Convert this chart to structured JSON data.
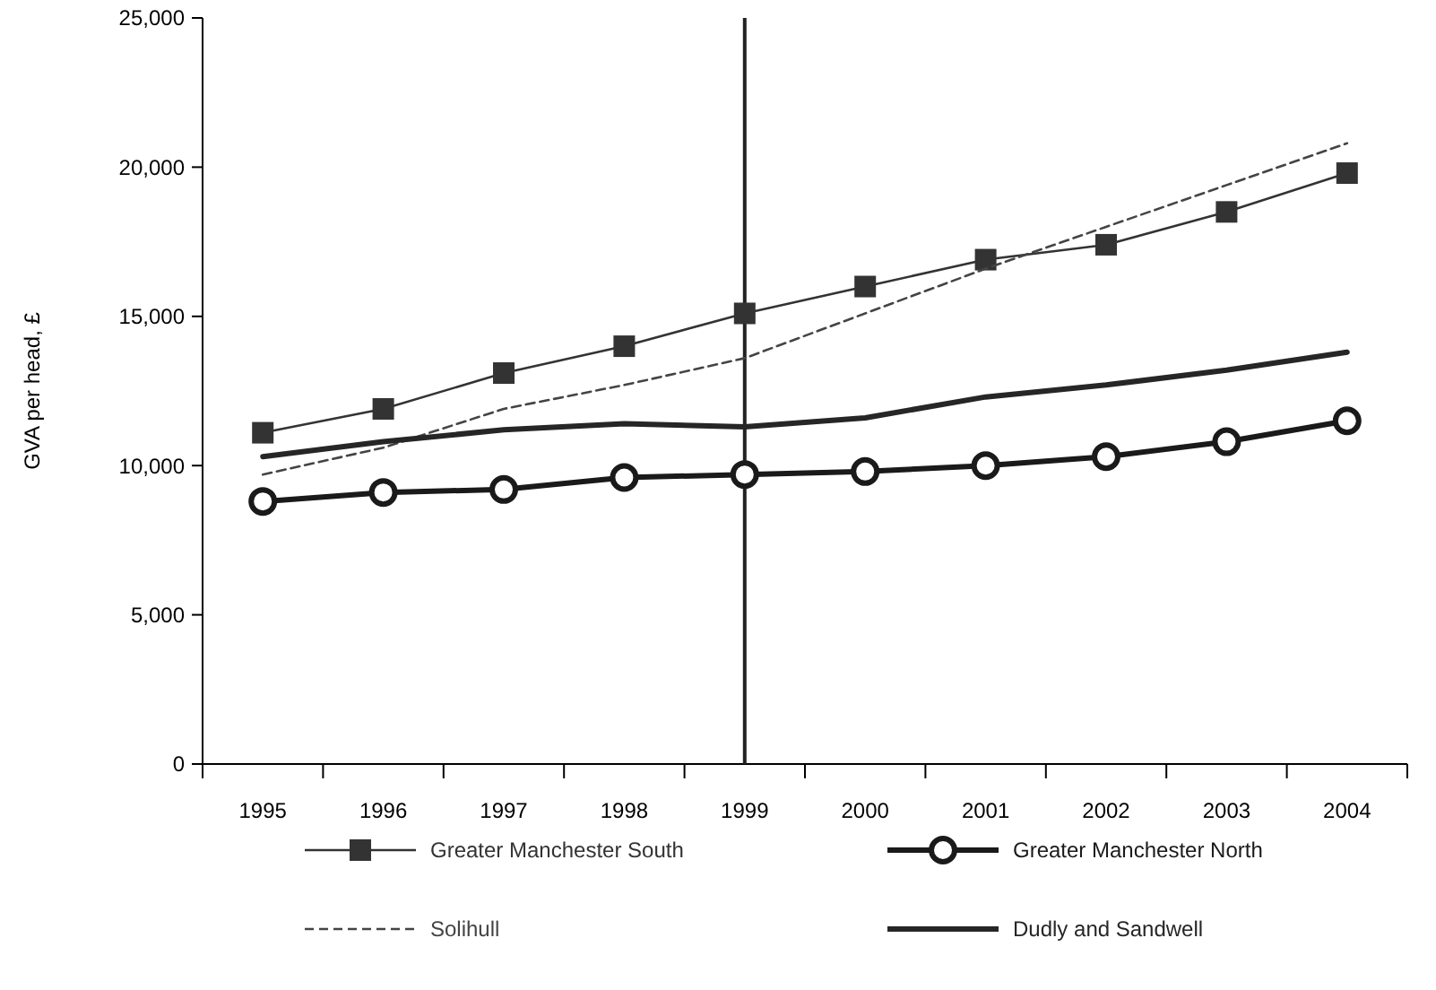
{
  "chart_data": {
    "type": "line",
    "ylabel": "GVA per head, £",
    "categories": [
      "1995",
      "1996",
      "1997",
      "1998",
      "1999",
      "2000",
      "2001",
      "2002",
      "2003",
      "2004"
    ],
    "ylim": [
      0,
      25000
    ],
    "yticks": [
      {
        "value": 0,
        "label": "0"
      },
      {
        "value": 5000,
        "label": "5,000"
      },
      {
        "value": 10000,
        "label": "10,000"
      },
      {
        "value": 15000,
        "label": "15,000"
      },
      {
        "value": 20000,
        "label": "20,000"
      },
      {
        "value": 25000,
        "label": "25,000"
      }
    ],
    "grid": false,
    "legend": "bottom",
    "ref_lines": [
      {
        "axis": "x",
        "value": "1999",
        "color": "#222222",
        "line_style": "solid"
      }
    ],
    "series": [
      {
        "name": "Greater Manchester South",
        "color": "#333333",
        "marker": "square",
        "line_style": "solid",
        "values": [
          11100,
          11900,
          13100,
          14000,
          15100,
          16000,
          16900,
          17400,
          18500,
          19800
        ]
      },
      {
        "name": "Greater Manchester North",
        "color": "#1a1a1a",
        "marker": "circle",
        "line_style": "solid",
        "values": [
          8800,
          9100,
          9200,
          9600,
          9700,
          9800,
          10000,
          10300,
          10800,
          11500
        ]
      },
      {
        "name": "Solihull",
        "color": "#444444",
        "marker": "none",
        "line_style": "dashed",
        "values": [
          9700,
          10600,
          11900,
          12700,
          13600,
          15100,
          16600,
          18000,
          19400,
          20800
        ]
      },
      {
        "name": "Dudly and Sandwell",
        "color": "#262626",
        "marker": "none",
        "line_style": "solid",
        "values": [
          10300,
          10800,
          11200,
          11400,
          11300,
          11600,
          12300,
          12700,
          13200,
          13800
        ]
      }
    ]
  }
}
